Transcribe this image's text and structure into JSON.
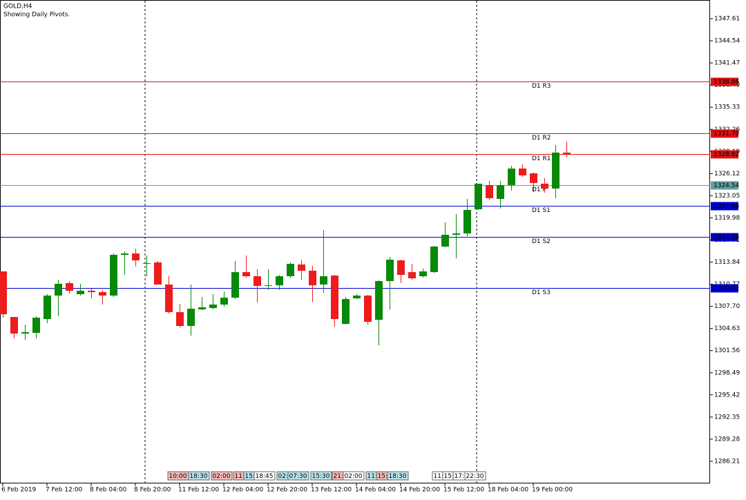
{
  "chart_data": {
    "type": "candlestick",
    "title": "GOLD,H4",
    "subtitle": "Showing Daily Pivots.",
    "categories": [
      "6 Feb 2019",
      null,
      null,
      null,
      "7 Feb 12:00",
      null,
      null,
      null,
      "8 Feb 04:00",
      null,
      null,
      null,
      "8 Feb 20:00",
      null,
      null,
      null,
      "11 Feb 12:00",
      null,
      null,
      null,
      "12 Feb 04:00",
      null,
      null,
      null,
      "12 Feb 20:00",
      null,
      null,
      null,
      "13 Feb 12:00",
      null,
      null,
      null,
      "14 Feb 04:00",
      null,
      null,
      null,
      "14 Feb 20:00",
      null,
      null,
      null,
      "15 Feb 12:00",
      null,
      null,
      null,
      "18 Feb 04:00",
      null,
      null,
      null,
      "19 Feb 00:00",
      null,
      null,
      null
    ],
    "open": [
      1312.55,
      1306.23,
      1303.93,
      1304.02,
      1305.94,
      1309.2,
      1310.92,
      1309.39,
      1309.87,
      1309.68,
      1309.2,
      1314.85,
      1315.04,
      1313.6,
      1313.8,
      1310.73,
      1306.9,
      1304.98,
      1307.28,
      1307.47,
      1307.95,
      1308.91,
      1312.45,
      1311.88,
      1310.54,
      1310.63,
      1311.88,
      1313.51,
      1312.65,
      1310.73,
      1311.98,
      1305.27,
      1308.81,
      1309.2,
      1305.84,
      1311.21,
      1314.08,
      1312.45,
      1311.88,
      1312.45,
      1316.0,
      1317.63,
      1317.82,
      1321.17,
      1324.53,
      1322.61,
      1324.53,
      1326.82,
      1326.15,
      1324.72,
      1324.05,
      1329.03
    ],
    "high": [
      1312.55,
      1306.23,
      1305.17,
      1306.32,
      1309.39,
      1311.4,
      1311.21,
      1310.83,
      1310.16,
      1309.96,
      1315.04,
      1315.33,
      1315.71,
      1314.75,
      1313.99,
      1311.88,
      1308.05,
      1310.73,
      1309.01,
      1309.39,
      1309.77,
      1313.99,
      1314.75,
      1312.84,
      1312.84,
      1312.07,
      1313.8,
      1314.18,
      1313.32,
      1318.3,
      1312.07,
      1309.01,
      1309.39,
      1309.29,
      1311.31,
      1314.56,
      1314.18,
      1313.6,
      1312.93,
      1316.1,
      1319.35,
      1320.5,
      1322.61,
      1324.72,
      1325.1,
      1325.1,
      1327.21,
      1327.4,
      1326.25,
      1325.48,
      1330.08,
      1330.56
    ],
    "low": [
      1306.13,
      1303.26,
      1303.07,
      1303.26,
      1305.37,
      1306.32,
      1309.48,
      1309.2,
      1308.81,
      1307.95,
      1309.01,
      1312.07,
      1313.22,
      1311.88,
      1310.73,
      1306.71,
      1304.79,
      1303.64,
      1307.19,
      1307.28,
      1307.66,
      1308.72,
      1311.69,
      1308.24,
      1309.96,
      1309.96,
      1311.69,
      1311.4,
      1308.34,
      1309.58,
      1304.89,
      1305.17,
      1308.72,
      1305.17,
      1302.3,
      1307.28,
      1310.92,
      1311.4,
      1311.69,
      1312.36,
      1315.9,
      1314.37,
      1317.44,
      1321.08,
      1322.42,
      1321.27,
      1323.76,
      1325.68,
      1323.57,
      1323.47,
      1322.71,
      1328.36
    ],
    "close": [
      1306.61,
      1303.93,
      1304.12,
      1306.13,
      1309.2,
      1310.83,
      1309.87,
      1309.87,
      1309.68,
      1309.2,
      1314.85,
      1315.04,
      1314.08,
      1313.7,
      1310.73,
      1306.9,
      1304.98,
      1307.38,
      1307.57,
      1307.95,
      1308.91,
      1312.45,
      1311.88,
      1310.54,
      1310.63,
      1311.88,
      1313.6,
      1312.65,
      1310.63,
      1311.88,
      1305.94,
      1308.72,
      1309.2,
      1305.56,
      1311.21,
      1314.18,
      1312.07,
      1311.59,
      1312.55,
      1316.0,
      1317.63,
      1317.82,
      1321.08,
      1324.72,
      1322.71,
      1324.53,
      1326.82,
      1325.87,
      1324.81,
      1324.05,
      1329.03,
      1328.84
    ],
    "up_color": "#088a08",
    "down_color": "#ee1c1c",
    "ylim": [
      1283.14,
      1350.2
    ],
    "yticks": [
      1347.61,
      1344.54,
      1341.47,
      {
        "value": 1338.4,
        "label": "1338.40"
      },
      1335.33,
      1332.26,
      1329.19,
      1326.12,
      1323.05,
      1319.98,
      1316.91,
      1313.84,
      1310.77,
      {
        "value": 1307.7,
        "label": "1307.70"
      },
      1304.63,
      1301.56,
      1298.49,
      1295.42,
      1292.35,
      1289.28,
      1286.21
    ],
    "pivots": [
      {
        "name": "D1 R3",
        "value": 1338.86,
        "color": "#e01010"
      },
      {
        "name": "D1 R2",
        "value": 1331.7,
        "value_label": "1331.70",
        "color": "#e01010"
      },
      {
        "name": "D1 R1",
        "value": 1328.82,
        "color": "#e01010"
      },
      {
        "name": "D1 P",
        "value": 1324.54,
        "color": "#5f9ea0"
      },
      {
        "name": "D1 S1",
        "value": 1321.66,
        "color": "#0000cc"
      },
      {
        "name": "D1 S2",
        "value": 1317.38,
        "color": "#0000cc"
      },
      {
        "name": "D1 S3",
        "value": 1310.22,
        "color": "#0000cc"
      }
    ],
    "events": [
      {
        "label": "10:00",
        "color": "#f5b8b8"
      },
      {
        "label": "18:30",
        "color": "#b8e2ea"
      },
      {
        "label": "02:00",
        "color": "#f5b8b8"
      },
      {
        "label": "11:",
        "color": "#f5b8b8"
      },
      {
        "label": "15:",
        "color": "#b8e2ea"
      },
      {
        "label": "18:45",
        "color": "#ffffff"
      },
      {
        "label": "02:",
        "color": "#b8e2ea"
      },
      {
        "label": "07:30",
        "color": "#b8e2ea"
      },
      {
        "label": "15:30",
        "color": "#b8e2ea"
      },
      {
        "label": "21:",
        "color": "#f5b8b8"
      },
      {
        "label": "02:00",
        "color": "#ffffff"
      },
      {
        "label": "11:",
        "color": "#b8e2ea"
      },
      {
        "label": "15:",
        "color": "#f5b8b8"
      },
      {
        "label": "18:30",
        "color": "#b8e2ea"
      },
      {
        "label": "11:",
        "color": "#ffffff"
      },
      {
        "label": "15:",
        "color": "#ffffff"
      },
      {
        "label": "17:",
        "color": "#ffffff"
      },
      {
        "label": "22:30",
        "color": "#ffffff"
      }
    ]
  }
}
